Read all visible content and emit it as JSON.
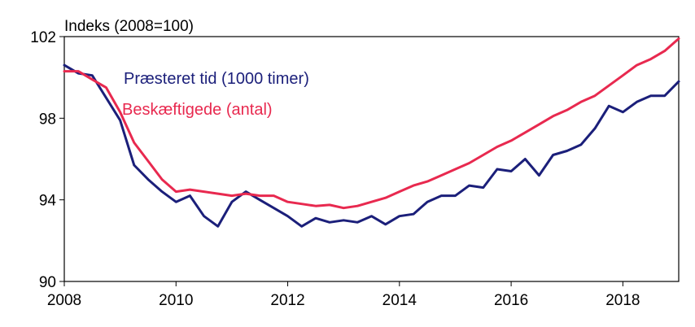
{
  "chart_data": {
    "type": "line",
    "ylabel": "Indeks (2008=100)",
    "ylim": [
      90,
      102
    ],
    "yticks": [
      90,
      94,
      98,
      102
    ],
    "xlim": [
      2008,
      2019
    ],
    "xticks": [
      2008,
      2010,
      2012,
      2014,
      2016,
      2018
    ],
    "grid": false,
    "legend_position": "inline",
    "series": [
      {
        "name": "Præsteret tid (1000 timer)",
        "color": "#1b1f7a",
        "x": [
          2008.0,
          2008.25,
          2008.5,
          2008.75,
          2009.0,
          2009.25,
          2009.5,
          2009.75,
          2010.0,
          2010.25,
          2010.5,
          2010.75,
          2011.0,
          2011.25,
          2011.5,
          2011.75,
          2012.0,
          2012.25,
          2012.5,
          2012.75,
          2013.0,
          2013.25,
          2013.5,
          2013.75,
          2014.0,
          2014.25,
          2014.5,
          2014.75,
          2015.0,
          2015.25,
          2015.5,
          2015.75,
          2016.0,
          2016.25,
          2016.5,
          2016.75,
          2017.0,
          2017.25,
          2017.5,
          2017.75,
          2018.0,
          2018.25,
          2018.5,
          2018.75,
          2019.0
        ],
        "values": [
          100.6,
          100.2,
          100.1,
          99.0,
          97.9,
          95.7,
          95.0,
          94.4,
          93.9,
          94.2,
          93.2,
          92.7,
          93.9,
          94.4,
          94.0,
          93.6,
          93.2,
          92.7,
          93.1,
          92.9,
          93.0,
          92.9,
          93.2,
          92.8,
          93.2,
          93.3,
          93.9,
          94.2,
          94.2,
          94.7,
          94.6,
          95.5,
          95.4,
          96.0,
          95.2,
          96.2,
          96.4,
          96.7,
          97.5,
          98.6,
          98.3,
          98.8,
          99.1,
          99.1,
          99.8
        ]
      },
      {
        "name": "Beskæftigede (antal)",
        "color": "#e8294f",
        "x": [
          2008.0,
          2008.25,
          2008.5,
          2008.75,
          2009.0,
          2009.25,
          2009.5,
          2009.75,
          2010.0,
          2010.25,
          2010.5,
          2010.75,
          2011.0,
          2011.25,
          2011.5,
          2011.75,
          2012.0,
          2012.25,
          2012.5,
          2012.75,
          2013.0,
          2013.25,
          2013.5,
          2013.75,
          2014.0,
          2014.25,
          2014.5,
          2014.75,
          2015.0,
          2015.25,
          2015.5,
          2015.75,
          2016.0,
          2016.25,
          2016.5,
          2016.75,
          2017.0,
          2017.25,
          2017.5,
          2017.75,
          2018.0,
          2018.25,
          2018.5,
          2018.75,
          2019.0
        ],
        "values": [
          100.3,
          100.3,
          99.9,
          99.5,
          98.3,
          96.8,
          95.9,
          95.0,
          94.4,
          94.5,
          94.4,
          94.3,
          94.2,
          94.3,
          94.2,
          94.2,
          93.9,
          93.8,
          93.7,
          93.75,
          93.6,
          93.7,
          93.9,
          94.1,
          94.4,
          94.7,
          94.9,
          95.2,
          95.5,
          95.8,
          96.2,
          96.6,
          96.9,
          97.3,
          97.7,
          98.1,
          98.4,
          98.8,
          99.1,
          99.6,
          100.1,
          100.6,
          100.9,
          101.3,
          101.9
        ]
      }
    ]
  }
}
